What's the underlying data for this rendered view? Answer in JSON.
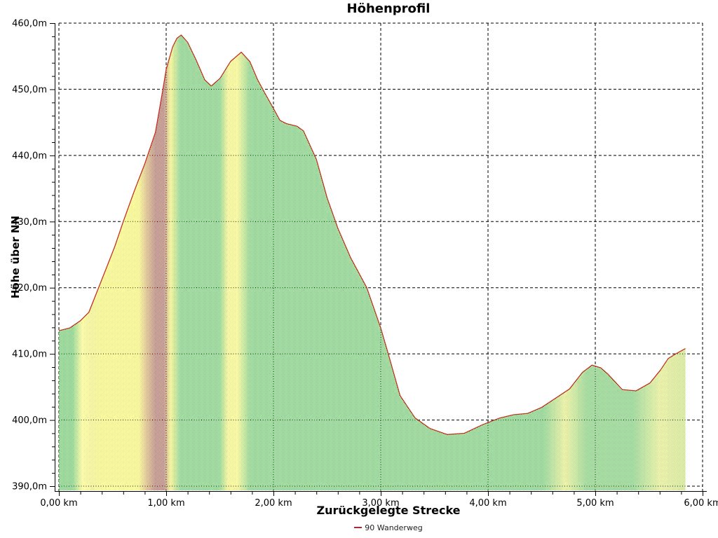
{
  "chart_data": {
    "type": "area",
    "title": "Höhenprofil",
    "xlabel": "Zurückgelegte Strecke",
    "ylabel": "Höhe über NN",
    "legend": [
      {
        "label": "90 Wanderweg",
        "color": "#a8293a"
      }
    ],
    "line_color": "#c23020",
    "grid": "dashed",
    "xlim": [
      0,
      6
    ],
    "ylim": [
      390,
      460
    ],
    "x_unit": "km",
    "y_unit": "m",
    "x_ticks": [
      {
        "km": 0,
        "label": "0,00 km"
      },
      {
        "km": 1,
        "label": "1,00 km"
      },
      {
        "km": 2,
        "label": "2,00 km"
      },
      {
        "km": 3,
        "label": "3,00 km"
      },
      {
        "km": 4,
        "label": "4,00 km"
      },
      {
        "km": 5,
        "label": "5,00 km"
      },
      {
        "km": 6,
        "label": "6,00 km"
      }
    ],
    "y_ticks": [
      {
        "m": 460,
        "label": "460,0m"
      },
      {
        "m": 450,
        "label": "450,0m"
      },
      {
        "m": 440,
        "label": "440,0m"
      },
      {
        "m": 430,
        "label": "430,0m"
      },
      {
        "m": 420,
        "label": "420,0m"
      },
      {
        "m": 410,
        "label": "410,0m"
      },
      {
        "m": 400,
        "label": "400,0m"
      },
      {
        "m": 390,
        "label": "390,0m"
      }
    ],
    "x_minor_step_km": 0.2,
    "y_minor_step_m": 2,
    "profile_end_km": 5.84,
    "profile": [
      [
        0.0,
        413.5
      ],
      [
        0.1,
        413.9
      ],
      [
        0.2,
        415.0
      ],
      [
        0.28,
        416.3
      ],
      [
        0.37,
        420.0
      ],
      [
        0.45,
        423.3
      ],
      [
        0.52,
        426.2
      ],
      [
        0.6,
        430.0
      ],
      [
        0.7,
        434.5
      ],
      [
        0.8,
        438.7
      ],
      [
        0.9,
        443.5
      ],
      [
        0.97,
        450.0
      ],
      [
        1.0,
        453.0
      ],
      [
        1.06,
        456.4
      ],
      [
        1.1,
        457.7
      ],
      [
        1.14,
        458.2
      ],
      [
        1.2,
        457.1
      ],
      [
        1.28,
        454.4
      ],
      [
        1.36,
        451.4
      ],
      [
        1.42,
        450.5
      ],
      [
        1.5,
        451.6
      ],
      [
        1.6,
        454.2
      ],
      [
        1.7,
        455.6
      ],
      [
        1.78,
        454.2
      ],
      [
        1.85,
        451.5
      ],
      [
        1.92,
        449.4
      ],
      [
        2.0,
        447.1
      ],
      [
        2.06,
        445.3
      ],
      [
        2.12,
        444.8
      ],
      [
        2.22,
        444.4
      ],
      [
        2.28,
        443.7
      ],
      [
        2.4,
        439.4
      ],
      [
        2.5,
        433.6
      ],
      [
        2.6,
        429.0
      ],
      [
        2.72,
        424.5
      ],
      [
        2.87,
        420.0
      ],
      [
        3.0,
        413.9
      ],
      [
        3.07,
        410.0
      ],
      [
        3.18,
        403.7
      ],
      [
        3.32,
        400.3
      ],
      [
        3.46,
        398.7
      ],
      [
        3.62,
        397.8
      ],
      [
        3.78,
        398.0
      ],
      [
        3.95,
        399.3
      ],
      [
        4.11,
        400.3
      ],
      [
        4.24,
        400.8
      ],
      [
        4.37,
        401.0
      ],
      [
        4.5,
        401.9
      ],
      [
        4.63,
        403.3
      ],
      [
        4.76,
        404.7
      ],
      [
        4.88,
        407.2
      ],
      [
        4.97,
        408.3
      ],
      [
        5.05,
        407.9
      ],
      [
        5.12,
        406.9
      ],
      [
        5.25,
        404.6
      ],
      [
        5.38,
        404.4
      ],
      [
        5.51,
        405.6
      ],
      [
        5.61,
        407.6
      ],
      [
        5.68,
        409.3
      ],
      [
        5.74,
        409.9
      ],
      [
        5.84,
        410.8
      ]
    ],
    "slope_bands": [
      {
        "km": 0.0,
        "color": "#3ecf3e"
      },
      {
        "km": 0.13,
        "color": "#3ecf3e"
      },
      {
        "km": 0.22,
        "color": "#ffff55"
      },
      {
        "km": 0.3,
        "color": "#efef4a"
      },
      {
        "km": 0.42,
        "color": "#f8f83e"
      },
      {
        "km": 0.74,
        "color": "#f8f83e"
      },
      {
        "km": 0.82,
        "color": "#e08f38"
      },
      {
        "km": 0.9,
        "color": "#b5402f"
      },
      {
        "km": 0.98,
        "color": "#b5402f"
      },
      {
        "km": 1.04,
        "color": "#f4f444"
      },
      {
        "km": 1.13,
        "color": "#44cf44"
      },
      {
        "km": 1.5,
        "color": "#44cf44"
      },
      {
        "km": 1.58,
        "color": "#f6f64a"
      },
      {
        "km": 1.66,
        "color": "#f6f64a"
      },
      {
        "km": 1.78,
        "color": "#44cf44"
      },
      {
        "km": 4.52,
        "color": "#44cf44"
      },
      {
        "km": 4.72,
        "color": "#d9ee55"
      },
      {
        "km": 4.92,
        "color": "#50cf46"
      },
      {
        "km": 5.35,
        "color": "#4bcf46"
      },
      {
        "km": 5.6,
        "color": "#d5ec58"
      },
      {
        "km": 5.84,
        "color": "#b4e04e"
      }
    ]
  }
}
